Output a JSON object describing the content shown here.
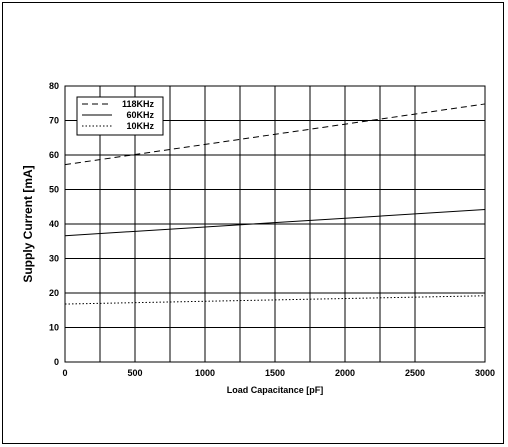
{
  "chart_data": {
    "type": "line",
    "title": "",
    "xlabel": "Load Capacitance [pF]",
    "ylabel": "Supply Current [mA]",
    "xlim": [
      0,
      3000
    ],
    "ylim": [
      0,
      80
    ],
    "x_ticks": [
      0,
      500,
      1000,
      1500,
      2000,
      2500,
      3000
    ],
    "y_ticks": [
      0,
      10,
      20,
      30,
      40,
      50,
      60,
      70,
      80
    ],
    "vgrid": [
      0,
      250,
      500,
      750,
      1000,
      1250,
      1500,
      1750,
      2000,
      2250,
      2500,
      3000
    ],
    "grid": true,
    "legend_position": "top-left",
    "series": [
      {
        "name": "118KHz",
        "style": "dashed",
        "x": [
          0,
          3000
        ],
        "y": [
          57.2,
          74.8
        ]
      },
      {
        "name": "60KHz",
        "style": "solid",
        "x": [
          0,
          3000
        ],
        "y": [
          36.6,
          44.2
        ]
      },
      {
        "name": "10KHz",
        "style": "dotted",
        "x": [
          0,
          3000
        ],
        "y": [
          16.8,
          19.2
        ]
      }
    ]
  }
}
